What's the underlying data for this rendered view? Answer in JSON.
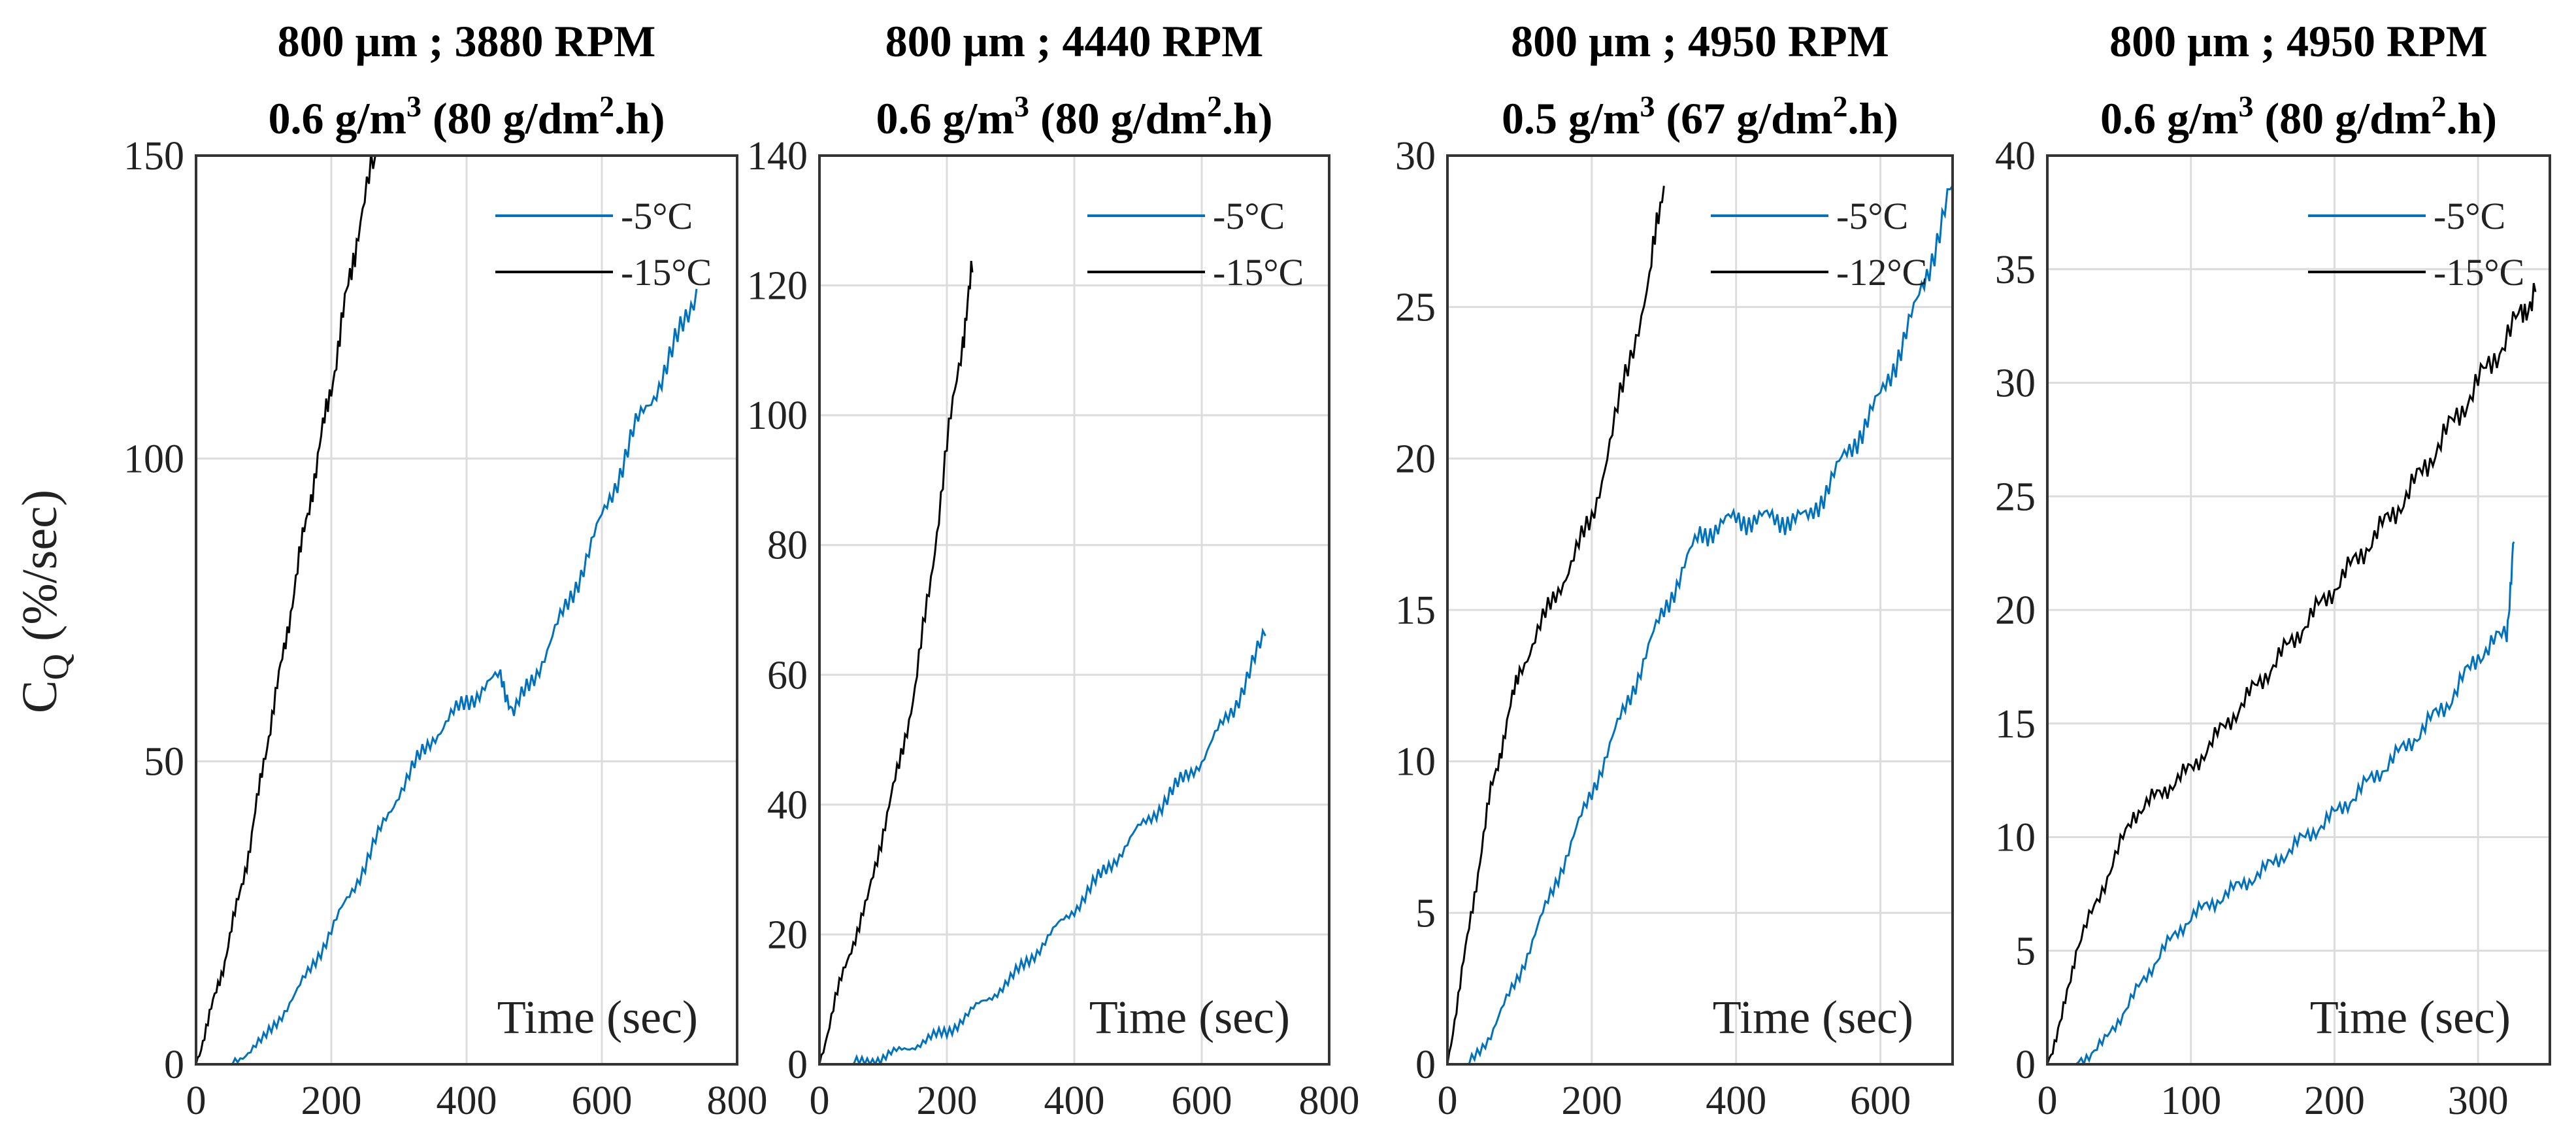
{
  "figure": {
    "ylabel": "C",
    "ylabel_sub": "Q",
    "ylabel_unit": " (%/sec)"
  },
  "colors": {
    "warm": "#0072BD",
    "cold": "#000000",
    "grid": "#dcdcdc"
  },
  "chart_data": [
    {
      "type": "line",
      "title_line1": "800 μm ; 3880 RPM",
      "title_line2_a": "0.6 g/m",
      "title_line2_sup1": "3",
      "title_line2_b": " (80 g/dm",
      "title_line2_sup2": "2",
      "title_line2_c": ".h)",
      "xlabel": "Time (sec)",
      "xlim": [
        0,
        800
      ],
      "ylim": [
        0,
        150
      ],
      "xticks": [
        0,
        200,
        400,
        600,
        800
      ],
      "yticks": [
        0,
        50,
        100,
        150
      ],
      "grid": true,
      "legend": "top-right",
      "series": [
        {
          "name": "-5°C",
          "color": "#0072BD",
          "points": [
            [
              0,
              0
            ],
            [
              50,
              0
            ],
            [
              100,
              4
            ],
            [
              150,
              12
            ],
            [
              200,
              22
            ],
            [
              250,
              33
            ],
            [
              300,
              45
            ],
            [
              350,
              54
            ],
            [
              400,
              60
            ],
            [
              450,
              64
            ],
            [
              470,
              58
            ],
            [
              500,
              64
            ],
            [
              550,
              76
            ],
            [
              600,
              90
            ],
            [
              650,
              105
            ],
            [
              700,
              116
            ],
            [
              740,
              128
            ]
          ]
        },
        {
          "name": "-15°C",
          "color": "#000000",
          "points": [
            [
              0,
              0
            ],
            [
              20,
              8
            ],
            [
              40,
              16
            ],
            [
              60,
              26
            ],
            [
              80,
              36
            ],
            [
              100,
              50
            ],
            [
              120,
              62
            ],
            [
              140,
              75
            ],
            [
              160,
              88
            ],
            [
              180,
              100
            ],
            [
              200,
              112
            ],
            [
              220,
              125
            ],
            [
              240,
              138
            ],
            [
              265,
              150
            ]
          ]
        }
      ]
    },
    {
      "type": "line",
      "title_line1": "800 μm ; 4440 RPM",
      "title_line2_a": "0.6 g/m",
      "title_line2_sup1": "3",
      "title_line2_b": " (80 g/dm",
      "title_line2_sup2": "2",
      "title_line2_c": ".h)",
      "xlabel": "Time (sec)",
      "xlim": [
        0,
        800
      ],
      "ylim": [
        0,
        140
      ],
      "xticks": [
        0,
        200,
        400,
        600,
        800
      ],
      "yticks": [
        0,
        20,
        40,
        60,
        80,
        100,
        120,
        140
      ],
      "grid": true,
      "legend": "top-right",
      "series": [
        {
          "name": "-5°C",
          "color": "#0072BD",
          "points": [
            [
              50,
              0
            ],
            [
              100,
              1
            ],
            [
              200,
              5
            ],
            [
              300,
              13
            ],
            [
              400,
              24
            ],
            [
              500,
              36
            ],
            [
              600,
              47
            ],
            [
              650,
              55
            ],
            [
              700,
              66
            ]
          ]
        },
        {
          "name": "-15°C",
          "color": "#000000",
          "points": [
            [
              0,
              0
            ],
            [
              25,
              10
            ],
            [
              50,
              18
            ],
            [
              75,
              25
            ],
            [
              100,
              36
            ],
            [
              125,
              46
            ],
            [
              150,
              58
            ],
            [
              175,
              75
            ],
            [
              200,
              95
            ],
            [
              225,
              112
            ],
            [
              240,
              122
            ]
          ]
        }
      ]
    },
    {
      "type": "line",
      "title_line1": "800 μm ; 4950 RPM",
      "title_line2_a": "0.5 g/m",
      "title_line2_sup1": "3",
      "title_line2_b": " (67 g/dm",
      "title_line2_sup2": "2",
      "title_line2_c": ".h)",
      "xlabel": "Time (sec)",
      "xlim": [
        0,
        700
      ],
      "ylim": [
        0,
        30
      ],
      "xticks": [
        0,
        200,
        400,
        600
      ],
      "yticks": [
        0,
        5,
        10,
        15,
        20,
        25,
        30
      ],
      "grid": true,
      "legend": "top-right",
      "series": [
        {
          "name": "-5°C",
          "color": "#0072BD",
          "points": [
            [
              30,
              0
            ],
            [
              60,
              1
            ],
            [
              100,
              3
            ],
            [
              150,
              6
            ],
            [
              200,
              9
            ],
            [
              250,
              12
            ],
            [
              300,
              15
            ],
            [
              350,
              17.5
            ],
            [
              400,
              18
            ],
            [
              450,
              18
            ],
            [
              500,
              18
            ],
            [
              550,
              20
            ],
            [
              600,
              22
            ],
            [
              650,
              25
            ],
            [
              700,
              29
            ]
          ]
        },
        {
          "name": "-12°C",
          "color": "#000000",
          "points": [
            [
              0,
              0
            ],
            [
              20,
              3
            ],
            [
              40,
              6
            ],
            [
              60,
              9
            ],
            [
              80,
              11
            ],
            [
              100,
              13
            ],
            [
              150,
              15.5
            ],
            [
              200,
              18
            ],
            [
              250,
              23
            ],
            [
              280,
              26
            ],
            [
              300,
              29
            ]
          ]
        }
      ]
    },
    {
      "type": "line",
      "title_line1": "800 μm ; 4950 RPM",
      "title_line2_a": "0.6 g/m",
      "title_line2_sup1": "3",
      "title_line2_b": " (80 g/dm",
      "title_line2_sup2": "2",
      "title_line2_c": ".h)",
      "xlabel": "Time (sec)",
      "xlim": [
        0,
        350
      ],
      "ylim": [
        0,
        40
      ],
      "xticks": [
        0,
        100,
        200,
        300
      ],
      "yticks": [
        0,
        5,
        10,
        15,
        20,
        25,
        30,
        35,
        40
      ],
      "grid": true,
      "legend": "top-right",
      "series": [
        {
          "name": "-5°C",
          "color": "#0072BD",
          "points": [
            [
              20,
              0
            ],
            [
              40,
              1
            ],
            [
              60,
              3
            ],
            [
              80,
              5
            ],
            [
              100,
              6.5
            ],
            [
              150,
              8.5
            ],
            [
              200,
              11
            ],
            [
              250,
              14
            ],
            [
              280,
              16
            ],
            [
              300,
              18
            ],
            [
              320,
              19
            ],
            [
              325,
              23
            ]
          ]
        },
        {
          "name": "-15°C",
          "color": "#000000",
          "points": [
            [
              0,
              0
            ],
            [
              10,
              2
            ],
            [
              20,
              5
            ],
            [
              40,
              8
            ],
            [
              60,
              11
            ],
            [
              100,
              13
            ],
            [
              150,
              17
            ],
            [
              200,
              21
            ],
            [
              250,
              25
            ],
            [
              300,
              30
            ],
            [
              330,
              33
            ],
            [
              340,
              34
            ]
          ]
        }
      ]
    }
  ]
}
